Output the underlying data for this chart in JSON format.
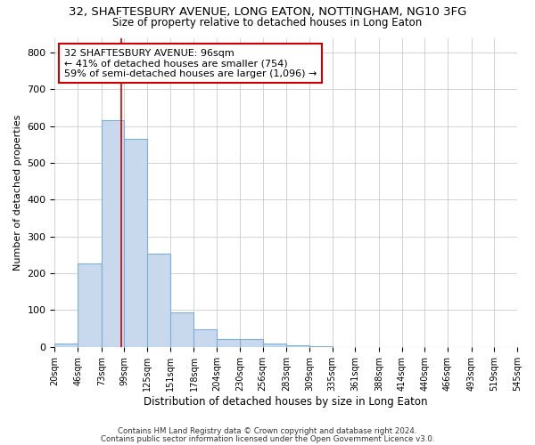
{
  "title": "32, SHAFTESBURY AVENUE, LONG EATON, NOTTINGHAM, NG10 3FG",
  "subtitle": "Size of property relative to detached houses in Long Eaton",
  "xlabel": "Distribution of detached houses by size in Long Eaton",
  "ylabel": "Number of detached properties",
  "bar_values": [
    10,
    228,
    617,
    565,
    253,
    95,
    47,
    22,
    22,
    10,
    5,
    3,
    0,
    0,
    0,
    0,
    0,
    0,
    0,
    0
  ],
  "bin_edges": [
    20,
    46,
    73,
    99,
    125,
    151,
    178,
    204,
    230,
    256,
    283,
    309,
    335,
    361,
    388,
    414,
    440,
    466,
    493,
    519,
    545
  ],
  "bar_color": "#c8d9ed",
  "bar_edge_color": "#7bafd4",
  "vline_x": 96,
  "vline_color": "#cc0000",
  "annotation_title": "32 SHAFTESBURY AVENUE: 96sqm",
  "annotation_line1": "← 41% of detached houses are smaller (754)",
  "annotation_line2": "59% of semi-detached houses are larger (1,096) →",
  "annotation_box_facecolor": "#ffffff",
  "annotation_box_edgecolor": "#cc0000",
  "ylim": [
    0,
    840
  ],
  "yticks": [
    0,
    100,
    200,
    300,
    400,
    500,
    600,
    700,
    800
  ],
  "grid_color": "#cccccc",
  "background_color": "#ffffff",
  "plot_bg_color": "#ffffff",
  "footer1": "Contains HM Land Registry data © Crown copyright and database right 2024.",
  "footer2": "Contains public sector information licensed under the Open Government Licence v3.0.",
  "title_fontsize": 9.5,
  "subtitle_fontsize": 8.5,
  "ylabel_fontsize": 8,
  "xlabel_fontsize": 8.5
}
